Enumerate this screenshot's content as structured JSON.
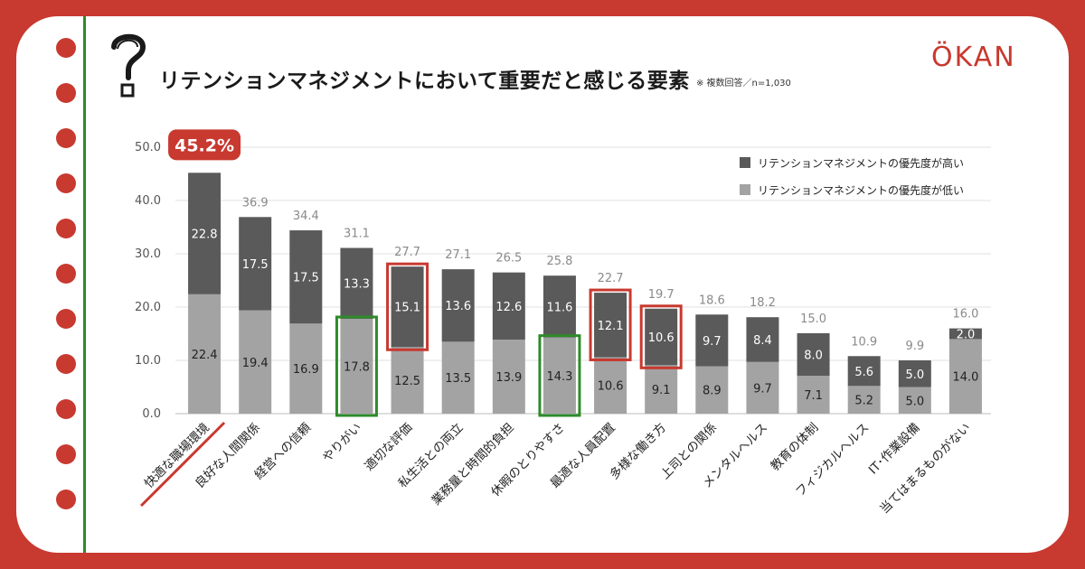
{
  "header": {
    "title": "リテンションマネジメントにおいて重要だと感じる要素",
    "note": "※ 複数回答／n=1,030",
    "logo": "ÖKAN",
    "question_icon": "question-mark-icon"
  },
  "callout": {
    "text": "45.2%"
  },
  "colors": {
    "background": "#c8392f",
    "card": "#ffffff",
    "accent_red": "#c8392f",
    "accent_green": "#2e8b2a",
    "series_high": "#5a5a5a",
    "series_low": "#a3a3a3",
    "total_label": "#8a8a8a"
  },
  "chart_data": {
    "type": "bar",
    "stacked": true,
    "categories": [
      "快適な職場環境",
      "良好な人間関係",
      "経営への信頼",
      "やりがい",
      "適切な評価",
      "私生活との両立",
      "業務量と時間的負担",
      "休暇のとりやすさ",
      "最適な人員配置",
      "多様な働き方",
      "上司との関係",
      "メンタルヘルス",
      "教育の体制",
      "フィジカルヘルス",
      "IT･作業設備",
      "当てはまるものがない"
    ],
    "series": [
      {
        "name": "リテンションマネジメントの優先度が低い",
        "color": "#a3a3a3",
        "values": [
          22.4,
          19.4,
          16.9,
          17.8,
          12.5,
          13.5,
          13.9,
          14.3,
          10.6,
          9.1,
          8.9,
          9.7,
          7.1,
          5.2,
          5.0,
          14.0
        ]
      },
      {
        "name": "リテンションマネジメントの優先度が高い",
        "color": "#5a5a5a",
        "values": [
          22.8,
          17.5,
          17.5,
          13.3,
          15.1,
          13.6,
          12.6,
          11.6,
          12.1,
          10.6,
          9.7,
          8.4,
          8.0,
          5.6,
          5.0,
          2.0
        ]
      }
    ],
    "totals": [
      "45.2",
      "36.9",
      "34.4",
      "31.1",
      "27.7",
      "27.1",
      "26.5",
      "25.8",
      "22.7",
      "19.7",
      "18.6",
      "18.2",
      "15.0",
      "10.9",
      "9.9",
      "16.0"
    ],
    "low_labels": [
      "22.4",
      "19.4",
      "16.9",
      "17.8",
      "12.5",
      "13.5",
      "13.9",
      "14.3",
      "10.6",
      "9.1",
      "8.9",
      "9.7",
      "7.1",
      "5.2",
      "5.0",
      "14.0"
    ],
    "high_labels": [
      "22.8",
      "17.5",
      "17.5",
      "13.3",
      "15.1",
      "13.6",
      "12.6",
      "11.6",
      "12.1",
      "10.6",
      "9.7",
      "8.4",
      "8.0",
      "5.6",
      "5.0",
      "2.0"
    ],
    "yticks": [
      "0.0",
      "10.0",
      "20.0",
      "30.0",
      "40.0",
      "50.0"
    ],
    "ylim": [
      0,
      50
    ],
    "grid": true,
    "legend_position": "top-right",
    "highlights": [
      {
        "category": "快適な職場環境",
        "style": "red-underline"
      },
      {
        "category": "やりがい",
        "segment": "low",
        "style": "green-box"
      },
      {
        "category": "休暇のとりやすさ",
        "segment": "low",
        "style": "green-box"
      },
      {
        "category": "適切な評価",
        "segment": "high",
        "style": "red-box"
      },
      {
        "category": "最適な人員配置",
        "segment": "high",
        "style": "red-box"
      },
      {
        "category": "多様な働き方",
        "segment": "high",
        "style": "red-box"
      }
    ]
  }
}
